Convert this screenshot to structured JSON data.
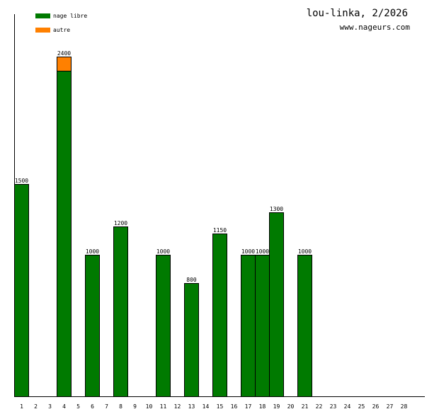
{
  "header": {
    "title": "lou-linka, 2/2026",
    "site": "www.nageurs.com"
  },
  "colors": {
    "nage_libre": "#007a00",
    "autre": "#ff8000",
    "axis": "#000000",
    "background": "#ffffff"
  },
  "legend": {
    "placement": "top-left",
    "items": [
      {
        "label": "nage libre",
        "color": "#007a00"
      },
      {
        "label": "autre",
        "color": "#ff8000"
      }
    ]
  },
  "chart_data": {
    "type": "bar",
    "stacked": true,
    "title": "lou-linka, 2/2026",
    "xlabel": "",
    "ylabel": "",
    "ylim": [
      0,
      2700
    ],
    "grid": false,
    "categories": [
      "1",
      "2",
      "3",
      "4",
      "5",
      "6",
      "7",
      "8",
      "9",
      "10",
      "11",
      "12",
      "13",
      "14",
      "15",
      "16",
      "17",
      "18",
      "19",
      "20",
      "21",
      "22",
      "23",
      "24",
      "25",
      "26",
      "27",
      "28"
    ],
    "series": [
      {
        "name": "nage libre",
        "color": "#007a00",
        "values": [
          1500,
          0,
          0,
          2300,
          0,
          1000,
          0,
          1200,
          0,
          0,
          1000,
          0,
          800,
          0,
          1150,
          0,
          1000,
          1000,
          1300,
          0,
          1000,
          0,
          0,
          0,
          0,
          0,
          0,
          0
        ]
      },
      {
        "name": "autre",
        "color": "#ff8000",
        "values": [
          0,
          0,
          0,
          100,
          0,
          0,
          0,
          0,
          0,
          0,
          0,
          0,
          0,
          0,
          0,
          0,
          0,
          0,
          0,
          0,
          0,
          0,
          0,
          0,
          0,
          0,
          0,
          0
        ]
      }
    ],
    "totals": [
      1500,
      0,
      0,
      2400,
      0,
      1000,
      0,
      1200,
      0,
      0,
      1000,
      0,
      800,
      0,
      1150,
      0,
      1000,
      1000,
      1300,
      0,
      1000,
      0,
      0,
      0,
      0,
      0,
      0,
      0
    ],
    "total_labels": [
      "1500",
      "",
      "",
      "2400",
      "",
      "1000",
      "",
      "1200",
      "",
      "",
      "1000",
      "",
      "800",
      "",
      "1150",
      "",
      "1000",
      "1000",
      "1300",
      "",
      "1000",
      "",
      "",
      "",
      "",
      "",
      "",
      ""
    ]
  }
}
